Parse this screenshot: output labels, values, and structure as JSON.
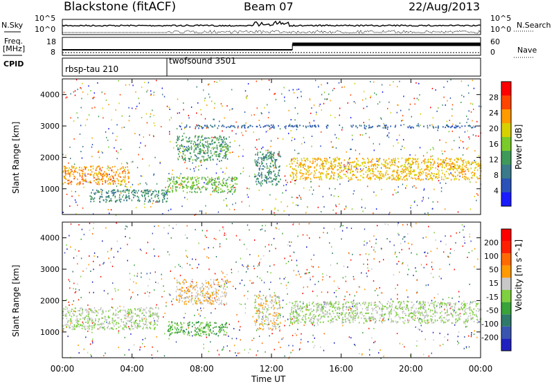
{
  "header": {
    "station": "Blackstone (fitACF)",
    "beam": "Beam 07",
    "date": "22/Aug/2013"
  },
  "top_panels": {
    "nsky_label": "N.Sky",
    "nsearch_label": "N.Search",
    "freq_label_line1": "Freq.",
    "freq_label_line2": "[MHz]",
    "nave_label": "Nave",
    "cpid_label": "CPID",
    "left_ticks_noise": [
      "10^5",
      "10^0"
    ],
    "right_ticks_noise": [
      "10^5",
      "10^0"
    ],
    "left_ticks_freq": [
      "18",
      "8"
    ],
    "right_ticks_nave": [
      "60",
      "0"
    ]
  },
  "cpid_segments": [
    {
      "label": "rbsp-tau 210",
      "start_hour": 0
    },
    {
      "label": "twofsound 3501",
      "start_hour": 6
    }
  ],
  "x_axis": {
    "label": "Time UT",
    "ticks": [
      "00:00",
      "04:00",
      "08:00",
      "12:00",
      "16:00",
      "20:00",
      "00:00"
    ]
  },
  "chart_data": [
    {
      "type": "heatmap",
      "title": "",
      "xlabel": "Time UT",
      "ylabel": "Slant Range [km]",
      "xlim": [
        0,
        24
      ],
      "ylim": [
        180,
        4500
      ],
      "yticks": [
        "1000",
        "2000",
        "3000",
        "4000"
      ],
      "colorbar": {
        "label": "Power [dB]",
        "range": [
          0,
          30
        ],
        "ticks": [
          "28",
          "24",
          "20",
          "16",
          "12",
          "8",
          "4"
        ],
        "colors": [
          "#1a1aff",
          "#2a52b8",
          "#3a7a8a",
          "#3f9a5a",
          "#7acb2a",
          "#d8d000",
          "#ff9a00",
          "#ff4500",
          "#ff0000"
        ]
      },
      "features": [
        {
          "t0": 0.0,
          "t1": 3.8,
          "r0": 1150,
          "r1": 1750,
          "level": 22
        },
        {
          "t0": 1.5,
          "t1": 6.0,
          "r0": 600,
          "r1": 1000,
          "level": 10
        },
        {
          "t0": 6.0,
          "t1": 10.0,
          "r0": 900,
          "r1": 1400,
          "level": 14
        },
        {
          "t0": 6.5,
          "t1": 9.5,
          "r0": 1900,
          "r1": 2700,
          "level": 12
        },
        {
          "t0": 11.0,
          "t1": 12.5,
          "r0": 1100,
          "r1": 2200,
          "level": 10
        },
        {
          "t0": 13.0,
          "t1": 24.0,
          "r0": 1300,
          "r1": 2000,
          "level": 20
        },
        {
          "t0": 6.5,
          "t1": 24.0,
          "r0": 2950,
          "r1": 3050,
          "level": 6
        }
      ]
    },
    {
      "type": "heatmap",
      "title": "",
      "xlabel": "Time UT",
      "ylabel": "Slant Range [km]",
      "xlim": [
        0,
        24
      ],
      "ylim": [
        180,
        4500
      ],
      "yticks": [
        "1000",
        "2000",
        "3000",
        "4000"
      ],
      "colorbar": {
        "label": "Velocity [m s^-1]",
        "range": [
          -250,
          250
        ],
        "ticks": [
          "200",
          "100",
          "50",
          "15",
          "-15",
          "-50",
          "-100",
          "-200"
        ],
        "colors": [
          "#2020c0",
          "#3a55b0",
          "#2f7a6a",
          "#3aa33a",
          "#7fd040",
          "#c8c8c8",
          "#ff9a00",
          "#ff6a00",
          "#ff2000",
          "#ff0000"
        ]
      },
      "features": [
        {
          "t0": 0.0,
          "t1": 5.5,
          "r0": 1100,
          "r1": 1800,
          "level": 0
        },
        {
          "t0": 6.0,
          "t1": 9.5,
          "r0": 900,
          "r1": 1350,
          "level": -60
        },
        {
          "t0": 6.5,
          "t1": 9.5,
          "r0": 1900,
          "r1": 2700,
          "level": 40
        },
        {
          "t0": 11.0,
          "t1": 12.5,
          "r0": 1100,
          "r1": 2200,
          "level": 30
        },
        {
          "t0": 13.0,
          "t1": 24.0,
          "r0": 1300,
          "r1": 2000,
          "level": 0
        }
      ]
    }
  ]
}
